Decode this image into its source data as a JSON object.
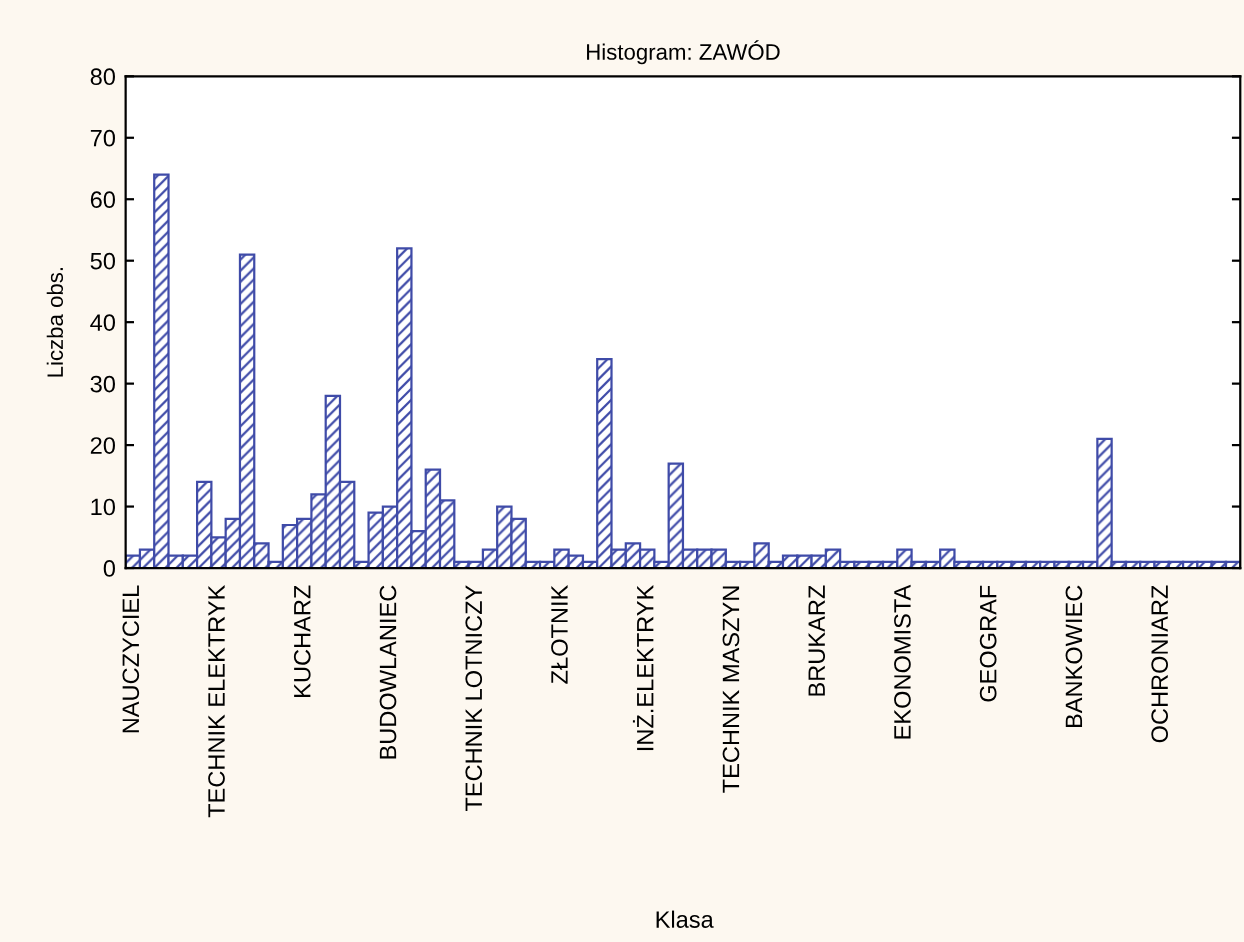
{
  "chart_data": {
    "type": "bar",
    "title": "Histogram: ZAWÓD",
    "xlabel": "Klasa",
    "ylabel": "Liczba obs.",
    "categories": [
      "NAUCZYCIEL",
      null,
      null,
      null,
      null,
      null,
      "TECHNIK ELEKTRYK",
      null,
      null,
      null,
      null,
      null,
      "KUCHARZ",
      null,
      null,
      null,
      null,
      null,
      "BUDOWLANIEC",
      null,
      null,
      null,
      null,
      null,
      "TECHNIK LOTNICZY",
      null,
      null,
      null,
      null,
      null,
      "ZŁOTNIK",
      null,
      null,
      null,
      null,
      null,
      "INŻ.ELEKTRYK",
      null,
      null,
      null,
      null,
      null,
      "TECHNIK MASZYN",
      null,
      null,
      null,
      null,
      null,
      "BRUKARZ",
      null,
      null,
      null,
      null,
      null,
      "EKONOMISTA",
      null,
      null,
      null,
      null,
      null,
      "GEOGRAF",
      null,
      null,
      null,
      null,
      null,
      "BANKOWIEC",
      null,
      null,
      null,
      null,
      null,
      "OCHRONIARZ",
      null,
      null,
      null,
      null,
      null
    ],
    "values": [
      2,
      3,
      64,
      2,
      2,
      14,
      5,
      8,
      51,
      4,
      1,
      7,
      8,
      12,
      28,
      14,
      1,
      9,
      10,
      52,
      6,
      16,
      11,
      1,
      1,
      3,
      10,
      8,
      1,
      1,
      3,
      2,
      1,
      34,
      3,
      4,
      3,
      1,
      17,
      3,
      3,
      3,
      1,
      1,
      4,
      1,
      2,
      2,
      2,
      3,
      1,
      1,
      1,
      1,
      3,
      1,
      1,
      3,
      1,
      1,
      1,
      1,
      1,
      1,
      1,
      1,
      1,
      1,
      21,
      1,
      1,
      1,
      1,
      1,
      1,
      1,
      1,
      1
    ],
    "color": "#3f4ba8",
    "ylim": [
      0,
      80
    ],
    "yticks": [
      0,
      10,
      20,
      30,
      40,
      50,
      60,
      70,
      80
    ],
    "grid": false
  }
}
